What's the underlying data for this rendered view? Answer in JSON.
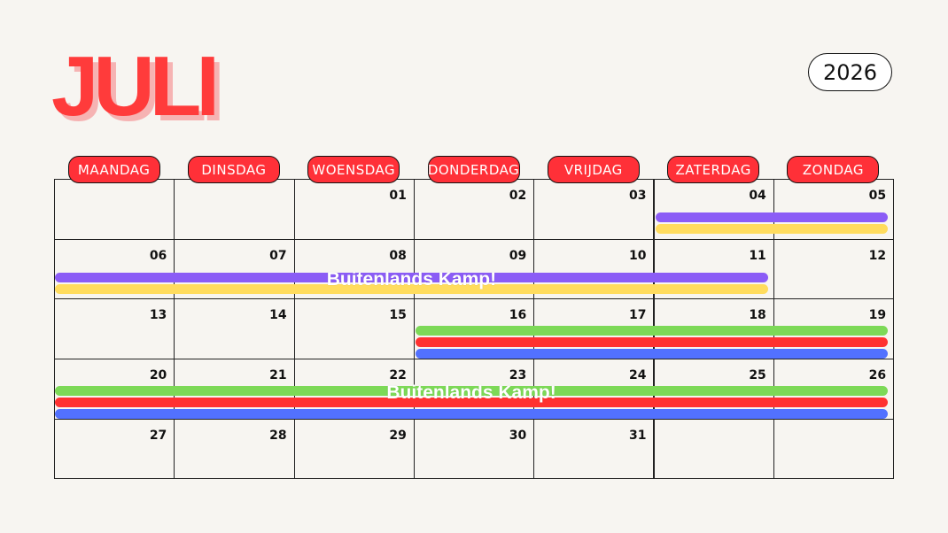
{
  "month": "JULI",
  "year": "2026",
  "weekdays": [
    "MAANDAG",
    "DINSDAG",
    "WOENSDAG",
    "DONDERDAG",
    "VRIJDAG",
    "ZATERDAG",
    "ZONDAG"
  ],
  "weeks": [
    [
      "",
      "",
      "01",
      "02",
      "03",
      "04",
      "05"
    ],
    [
      "06",
      "07",
      "08",
      "09",
      "10",
      "11",
      "12"
    ],
    [
      "13",
      "14",
      "15",
      "16",
      "17",
      "18",
      "19"
    ],
    [
      "20",
      "21",
      "22",
      "23",
      "24",
      "25",
      "26"
    ],
    [
      "27",
      "28",
      "29",
      "30",
      "31",
      "",
      ""
    ]
  ],
  "colors": {
    "purple": "#8b5cf6",
    "yellow": "#ffdc5e",
    "green": "#7dd957",
    "red": "#ff3131",
    "blue": "#5271ff"
  },
  "events": [
    {
      "label": "",
      "color": "purple",
      "week": 0,
      "start_col": 5,
      "end_col": 6,
      "slot": 0
    },
    {
      "label": "",
      "color": "yellow",
      "week": 0,
      "start_col": 5,
      "end_col": 6,
      "slot": 1
    },
    {
      "label": "Buitenlands Kamp!",
      "color": "purple",
      "week": 1,
      "start_col": 0,
      "end_col": 5,
      "slot": 0
    },
    {
      "label": "",
      "color": "yellow",
      "week": 1,
      "start_col": 0,
      "end_col": 5,
      "slot": 1
    },
    {
      "label": "",
      "color": "green",
      "week": 2,
      "start_col": 3,
      "end_col": 6,
      "slot": 0
    },
    {
      "label": "",
      "color": "red",
      "week": 2,
      "start_col": 3,
      "end_col": 6,
      "slot": 1
    },
    {
      "label": "",
      "color": "blue",
      "week": 2,
      "start_col": 3,
      "end_col": 6,
      "slot": 2
    },
    {
      "label": "Buitenlands Kamp!",
      "color": "green",
      "week": 3,
      "start_col": 0,
      "end_col": 6,
      "slot": 0
    },
    {
      "label": "",
      "color": "red",
      "week": 3,
      "start_col": 0,
      "end_col": 6,
      "slot": 1
    },
    {
      "label": "",
      "color": "blue",
      "week": 3,
      "start_col": 0,
      "end_col": 6,
      "slot": 2
    }
  ]
}
